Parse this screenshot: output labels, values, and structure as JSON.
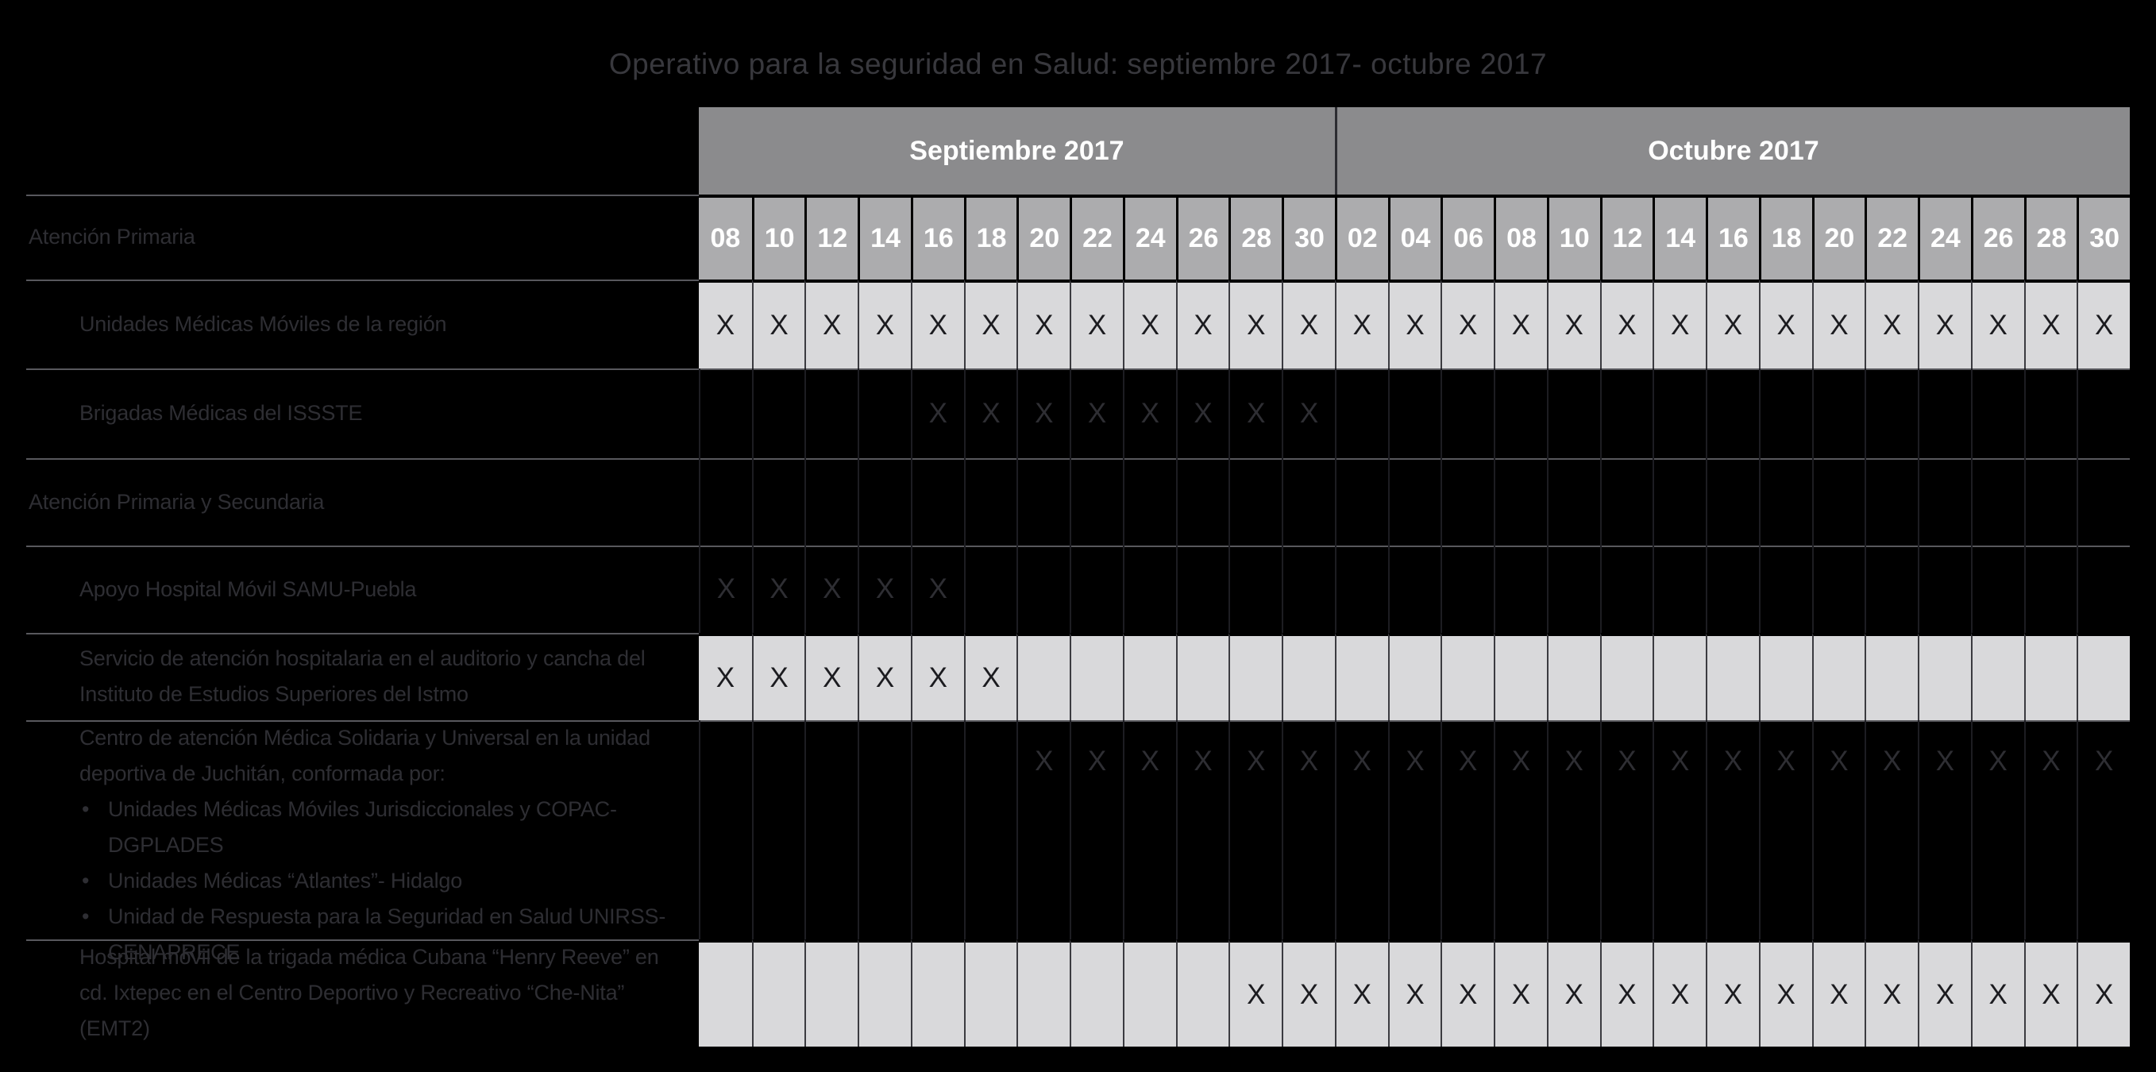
{
  "chart_data": {
    "type": "table",
    "subtype": "gantt-schedule",
    "title": "Operativo para la seguridad en Salud: septiembre 2017- octubre 2017",
    "mark_symbol": "X",
    "month_groups": [
      {
        "label": "Septiembre 2017",
        "columns": 12
      },
      {
        "label": "Octubre 2017",
        "columns": 15
      }
    ],
    "day_columns": [
      "08",
      "10",
      "12",
      "14",
      "16",
      "18",
      "20",
      "22",
      "24",
      "26",
      "28",
      "30",
      "02",
      "04",
      "06",
      "08",
      "10",
      "12",
      "14",
      "16",
      "18",
      "20",
      "22",
      "24",
      "26",
      "28",
      "30"
    ],
    "rows": [
      {
        "label": "Atención Primaria",
        "indent": 0,
        "shade": "dark",
        "kind": "days-header",
        "marks": []
      },
      {
        "label": "Unidades Médicas Móviles de la región",
        "indent": 1,
        "shade": "light",
        "marks": [
          0,
          1,
          2,
          3,
          4,
          5,
          6,
          7,
          8,
          9,
          10,
          11,
          12,
          13,
          14,
          15,
          16,
          17,
          18,
          19,
          20,
          21,
          22,
          23,
          24,
          25,
          26
        ]
      },
      {
        "label": "Brigadas Médicas del ISSSTE",
        "indent": 1,
        "shade": "dark",
        "marks": [
          4,
          5,
          6,
          7,
          8,
          9,
          10,
          11
        ]
      },
      {
        "label": "Atención Primaria y Secundaria",
        "indent": 0,
        "shade": "dark",
        "marks": []
      },
      {
        "label": "Apoyo Hospital Móvil SAMU-Puebla",
        "indent": 1,
        "shade": "dark",
        "marks": [
          0,
          1,
          2,
          3,
          4
        ]
      },
      {
        "label": "Servicio de atención hospitalaria en el auditorio y cancha del Instituto de Estudios Superiores del Istmo",
        "indent": 1,
        "shade": "light",
        "marks": [
          0,
          1,
          2,
          3,
          4,
          5
        ]
      },
      {
        "label": "Centro de atención Médica Solidaria y Universal en la unidad deportiva de Juchitán, conformada por:",
        "bullets": [
          "Unidades Médicas Móviles Jurisdiccionales y COPAC-DGPLADES",
          "Unidades Médicas “Atlantes”- Hidalgo",
          "Unidad de Respuesta para la Seguridad en Salud UNIRSS-CENAPRECE"
        ],
        "indent": 1,
        "shade": "dark",
        "mark_align": "top",
        "marks": [
          6,
          7,
          8,
          9,
          10,
          11,
          12,
          13,
          14,
          15,
          16,
          17,
          18,
          19,
          20,
          21,
          22,
          23,
          24,
          25,
          26
        ]
      },
      {
        "label": "Hospital móvil de la trigada médica Cubana “Henry Reeve” en cd. Ixtepec en el Centro Deportivo y Recreativo “Che-Nita” (EMT2)",
        "indent": 1,
        "shade": "light",
        "marks": [
          10,
          11,
          12,
          13,
          14,
          15,
          16,
          17,
          18,
          19,
          20,
          21,
          22,
          23,
          24,
          25,
          26
        ]
      }
    ],
    "colors": {
      "background": "#000000",
      "title_text": "#38383d",
      "month_header_bg": "#8b8b8d",
      "day_header_bg": "#acacae",
      "header_text": "#ffffff",
      "light_row_bg": "#d9d9db",
      "label_text": "#2e2e33",
      "mark_on_light": "#1b1b1f",
      "mark_on_dark": "#2e2e33",
      "separator_line": "#58585d"
    }
  }
}
